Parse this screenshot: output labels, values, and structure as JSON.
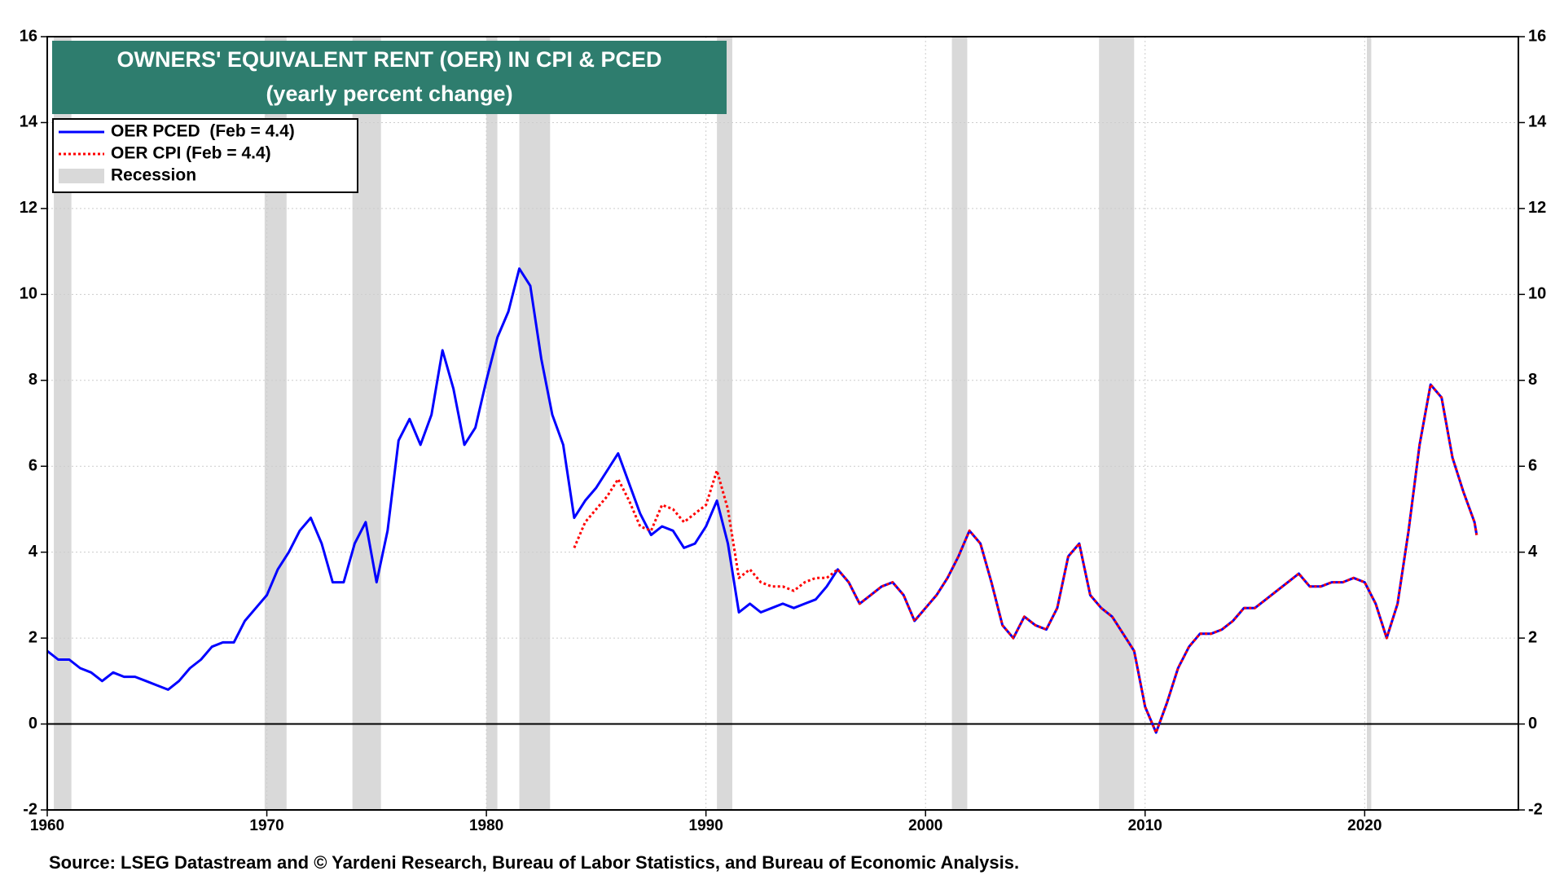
{
  "chart_data": {
    "type": "line",
    "title": "OWNERS' EQUIVALENT RENT (OER) IN CPI & PCED",
    "subtitle": "(yearly percent change)",
    "source": "Source: LSEG Datastream and © Yardeni Research, Bureau of Labor Statistics, and Bureau of Economic Analysis.",
    "recession_label": "Recession",
    "recession_color": "#d9d9d9",
    "recessions": [
      [
        1960.3,
        1961.1
      ],
      [
        1969.9,
        1970.9
      ],
      [
        1973.9,
        1975.2
      ],
      [
        1980.0,
        1980.5
      ],
      [
        1981.5,
        1982.9
      ],
      [
        1990.5,
        1991.2
      ],
      [
        2001.2,
        2001.9
      ],
      [
        2007.9,
        2009.5
      ],
      [
        2020.1,
        2020.3
      ]
    ],
    "xlim": [
      1960,
      2027
    ],
    "xticks": [
      1960,
      1970,
      1980,
      1990,
      2000,
      2010,
      2020
    ],
    "ylim": [
      -2,
      16
    ],
    "yticks": [
      -2,
      0,
      2,
      4,
      6,
      8,
      10,
      12,
      14,
      16
    ],
    "grid": true,
    "legend": "upper left",
    "x": [
      1960,
      1960.5,
      1961,
      1961.5,
      1962,
      1962.5,
      1963,
      1963.5,
      1964,
      1964.5,
      1965,
      1965.5,
      1966,
      1966.5,
      1967,
      1967.5,
      1968,
      1968.5,
      1969,
      1969.5,
      1970,
      1970.5,
      1971,
      1971.5,
      1972,
      1972.5,
      1973,
      1973.5,
      1974,
      1974.5,
      1975,
      1975.5,
      1976,
      1976.5,
      1977,
      1977.5,
      1978,
      1978.5,
      1979,
      1979.5,
      1980,
      1980.5,
      1981,
      1981.5,
      1982,
      1982.5,
      1983,
      1983.5,
      1984,
      1984.5,
      1985,
      1985.5,
      1986,
      1986.5,
      1987,
      1987.5,
      1988,
      1988.5,
      1989,
      1989.5,
      1990,
      1990.5,
      1991,
      1991.5,
      1992,
      1992.5,
      1993,
      1993.5,
      1994,
      1994.5,
      1995,
      1995.5,
      1996,
      1996.5,
      1997,
      1997.5,
      1998,
      1998.5,
      1999,
      1999.5,
      2000,
      2000.5,
      2001,
      2001.5,
      2002,
      2002.5,
      2003,
      2003.5,
      2004,
      2004.5,
      2005,
      2005.5,
      2006,
      2006.5,
      2007,
      2007.5,
      2008,
      2008.5,
      2009,
      2009.5,
      2010,
      2010.5,
      2011,
      2011.5,
      2012,
      2012.5,
      2013,
      2013.5,
      2014,
      2014.5,
      2015,
      2015.5,
      2016,
      2016.5,
      2017,
      2017.5,
      2018,
      2018.5,
      2019,
      2019.5,
      2020,
      2020.5,
      2021,
      2021.5,
      2022,
      2022.5,
      2023,
      2023.5,
      2024,
      2024.5,
      2025,
      2025.1
    ],
    "series": [
      {
        "name": "OER PCED  (Feb = 4.4)",
        "color": "#0000ff",
        "dash": "solid",
        "values": [
          1.7,
          1.5,
          1.5,
          1.3,
          1.2,
          1.0,
          1.2,
          1.1,
          1.1,
          1.0,
          0.9,
          0.8,
          1.0,
          1.3,
          1.5,
          1.8,
          1.9,
          1.9,
          2.4,
          2.7,
          3.0,
          3.6,
          4.0,
          4.5,
          4.8,
          4.2,
          3.3,
          3.3,
          4.2,
          4.7,
          3.3,
          4.5,
          6.6,
          7.1,
          6.5,
          7.2,
          8.7,
          7.8,
          6.5,
          6.9,
          8.0,
          9.0,
          9.6,
          10.6,
          10.2,
          8.5,
          7.2,
          6.5,
          4.8,
          5.2,
          5.5,
          5.9,
          6.3,
          5.6,
          4.9,
          4.4,
          4.6,
          4.5,
          4.1,
          4.2,
          4.6,
          5.2,
          4.2,
          2.6,
          2.8,
          2.6,
          2.7,
          2.8,
          2.7,
          2.8,
          2.9,
          3.2,
          3.6,
          3.3,
          2.8,
          3.0,
          3.2,
          3.3,
          3.0,
          2.4,
          2.7,
          3.0,
          3.4,
          3.9,
          4.5,
          4.2,
          3.3,
          2.3,
          2.0,
          2.5,
          2.3,
          2.2,
          2.7,
          3.9,
          4.2,
          3.0,
          2.7,
          2.5,
          2.1,
          1.7,
          0.4,
          -0.2,
          0.5,
          1.3,
          1.8,
          2.1,
          2.1,
          2.2,
          2.4,
          2.7,
          2.7,
          2.9,
          3.1,
          3.3,
          3.5,
          3.2,
          3.2,
          3.3,
          3.3,
          3.4,
          3.3,
          2.8,
          2.0,
          2.8,
          4.5,
          6.5,
          7.9,
          7.6,
          6.2,
          5.4,
          4.7,
          4.4
        ]
      },
      {
        "name": "OER CPI (Feb = 4.4)",
        "color": "#ff0000",
        "dash": "dotted",
        "values": [
          null,
          null,
          null,
          null,
          null,
          null,
          null,
          null,
          null,
          null,
          null,
          null,
          null,
          null,
          null,
          null,
          null,
          null,
          null,
          null,
          null,
          null,
          null,
          null,
          null,
          null,
          null,
          null,
          null,
          null,
          null,
          null,
          null,
          null,
          null,
          null,
          null,
          null,
          null,
          null,
          null,
          null,
          null,
          null,
          null,
          null,
          null,
          null,
          4.1,
          4.7,
          5.0,
          5.3,
          5.7,
          5.2,
          4.6,
          4.5,
          5.1,
          5.0,
          4.7,
          4.9,
          5.1,
          5.9,
          5.0,
          3.4,
          3.6,
          3.3,
          3.2,
          3.2,
          3.1,
          3.3,
          3.4,
          3.4,
          3.6,
          3.3,
          2.8,
          3.0,
          3.2,
          3.3,
          3.0,
          2.4,
          2.7,
          3.0,
          3.4,
          3.9,
          4.5,
          4.2,
          3.3,
          2.3,
          2.0,
          2.5,
          2.3,
          2.2,
          2.7,
          3.9,
          4.2,
          3.0,
          2.7,
          2.5,
          2.1,
          1.7,
          0.4,
          -0.2,
          0.5,
          1.3,
          1.8,
          2.1,
          2.1,
          2.2,
          2.4,
          2.7,
          2.7,
          2.9,
          3.1,
          3.3,
          3.5,
          3.2,
          3.2,
          3.3,
          3.3,
          3.4,
          3.3,
          2.8,
          2.0,
          2.8,
          4.5,
          6.5,
          7.9,
          7.6,
          6.2,
          5.4,
          4.7,
          4.4
        ]
      }
    ]
  }
}
